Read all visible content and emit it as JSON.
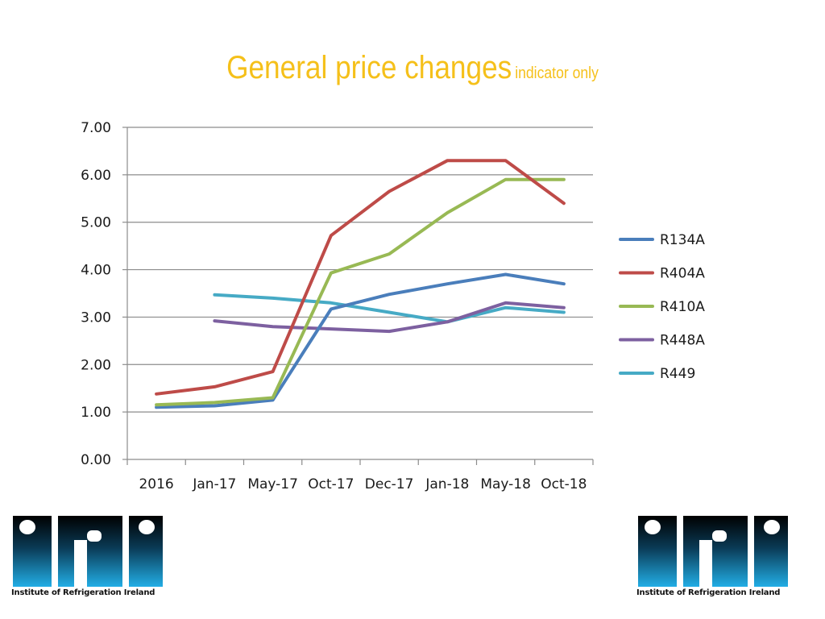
{
  "slide": {
    "title": "General price changes",
    "subtitle": "indicator only"
  },
  "colors": {
    "title": "#f5c01a",
    "R134A": "#4a7ebb",
    "R404A": "#be4b48",
    "R410A": "#98b954",
    "R448A": "#7d60a0",
    "R449": "#46aac5",
    "gridline": "#8c8c8c"
  },
  "logos": {
    "left": {
      "mark": "IRI",
      "caption": "Institute of Refrigeration Ireland"
    },
    "right": {
      "mark": "IRI",
      "caption": "Institute of Refrigeration Ireland"
    }
  },
  "chart_data": {
    "type": "line",
    "title": "",
    "xlabel": "",
    "ylabel": "",
    "categories": [
      "2016",
      "Jan-17",
      "May-17",
      "Oct-17",
      "Dec-17",
      "Jan-18",
      "May-18",
      "Oct-18"
    ],
    "ylim": [
      0,
      7
    ],
    "yticks": [
      "0.00",
      "1.00",
      "2.00",
      "3.00",
      "4.00",
      "5.00",
      "6.00",
      "7.00"
    ],
    "grid": "horizontal",
    "legend": "right",
    "series": [
      {
        "name": "R134A",
        "values": [
          1.1,
          1.13,
          1.25,
          3.17,
          3.48,
          3.7,
          3.9,
          3.7
        ]
      },
      {
        "name": "R404A",
        "values": [
          1.38,
          1.53,
          1.85,
          4.72,
          5.65,
          6.3,
          6.3,
          5.4
        ]
      },
      {
        "name": "R410A",
        "values": [
          1.15,
          1.2,
          1.3,
          3.93,
          4.33,
          5.2,
          5.9,
          5.9
        ]
      },
      {
        "name": "R448A",
        "values": [
          null,
          2.92,
          2.8,
          2.75,
          2.7,
          2.9,
          3.3,
          3.2
        ]
      },
      {
        "name": "R449",
        "values": [
          null,
          3.47,
          3.4,
          3.3,
          3.1,
          2.9,
          3.2,
          3.1
        ]
      }
    ]
  }
}
